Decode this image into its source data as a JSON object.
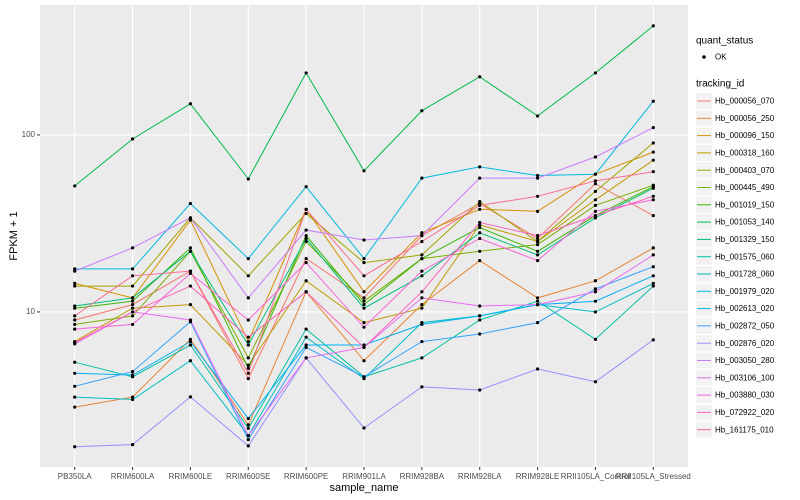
{
  "chart_data": {
    "type": "line",
    "x_label": "sample_name",
    "y_label": "FPKM + 1",
    "categories": [
      "PB350LA",
      "RRIM600LA",
      "RRIM600LE",
      "RRIM600SE",
      "RRIM600PE",
      "RRIM901LA",
      "RRIM928BA",
      "RRIM928LA",
      "RRIM928LE",
      "RRII105LA_Control",
      "RRII105LA_Stressed"
    ],
    "log_y": true,
    "grid": true,
    "ylim": [
      1.33,
      542
    ],
    "yticks": [
      10,
      100
    ],
    "point_legend_title": "quant_status",
    "point_legend_label": "OK",
    "point_color": "#000000",
    "legend_title": "tracking_id",
    "series": [
      {
        "name": "Hb_000056_070",
        "color": "#F8766D",
        "values": [
          9,
          11,
          17,
          4.2,
          20,
          12,
          27,
          41,
          26,
          53,
          35
        ]
      },
      {
        "name": "Hb_000056_250",
        "color": "#EA8331",
        "values": [
          2.9,
          3.3,
          7,
          2.3,
          13,
          5.3,
          11,
          19.5,
          12,
          15,
          23
        ]
      },
      {
        "name": "Hb_000096_150",
        "color": "#D89000",
        "values": [
          14.5,
          12,
          33,
          6.8,
          38,
          13,
          28,
          38,
          37,
          60,
          80
        ]
      },
      {
        "name": "Hb_000318_160",
        "color": "#C09B00",
        "values": [
          6.8,
          10.5,
          11,
          5,
          15,
          8.7,
          10.5,
          31,
          25,
          43,
          72
        ]
      },
      {
        "name": "Hb_000403_070",
        "color": "#A3A500",
        "values": [
          14,
          14,
          34,
          16,
          36,
          19,
          21,
          42,
          25,
          48,
          90
        ]
      },
      {
        "name": "Hb_000445_490",
        "color": "#7CAE00",
        "values": [
          8.5,
          9.5,
          22,
          5.5,
          25,
          11.5,
          20,
          22,
          24,
          40,
          52
        ]
      },
      {
        "name": "Hb_001019_150",
        "color": "#39B600",
        "values": [
          10.5,
          11.5,
          23,
          4.8,
          27,
          11,
          20,
          30,
          22,
          35,
          51
        ]
      },
      {
        "name": "Hb_001053_140",
        "color": "#00BB4E",
        "values": [
          51.5,
          94.8,
          150,
          56.4,
          224,
          62.7,
          137,
          213,
          128,
          224,
          413
        ]
      },
      {
        "name": "Hb_001329_150",
        "color": "#00BF7D",
        "values": [
          10.8,
          12,
          22,
          6.5,
          26,
          10.5,
          16,
          28,
          21,
          34,
          50
        ]
      },
      {
        "name": "Hb_001575_060",
        "color": "#00C1A3",
        "values": [
          5.2,
          4.3,
          6.5,
          2.2,
          8,
          4.3,
          5.5,
          9,
          11.5,
          7,
          14
        ]
      },
      {
        "name": "Hb_001728_060",
        "color": "#00BFC4",
        "values": [
          3.3,
          3.2,
          5.3,
          2.0,
          7.2,
          4.2,
          8.7,
          9.5,
          11,
          10,
          14.5
        ]
      },
      {
        "name": "Hb_001979_020",
        "color": "#00BAE0",
        "values": [
          17.5,
          17.5,
          41,
          20,
          51,
          20,
          57,
          66,
          59,
          60,
          155
        ]
      },
      {
        "name": "Hb_002613_020",
        "color": "#00B0F6",
        "values": [
          4.5,
          4.4,
          6.8,
          2.5,
          6.5,
          6.5,
          8.5,
          9.5,
          11,
          11.5,
          16
        ]
      },
      {
        "name": "Hb_002872_050",
        "color": "#35A2FF",
        "values": [
          3.8,
          4.6,
          8.8,
          1.9,
          6.3,
          4.3,
          6.8,
          7.5,
          8.7,
          13.5,
          18
        ]
      },
      {
        "name": "Hb_002876_020",
        "color": "#9590FF",
        "values": [
          1.73,
          1.78,
          3.31,
          1.75,
          5.5,
          2.21,
          3.77,
          3.62,
          4.76,
          4.03,
          6.95
        ]
      },
      {
        "name": "Hb_003050_280",
        "color": "#C77CFF",
        "values": [
          17,
          23,
          34,
          12,
          29,
          25.5,
          27,
          57,
          57,
          75,
          110
        ]
      },
      {
        "name": "Hb_003106_100",
        "color": "#E76BF3",
        "values": [
          6.6,
          10,
          9,
          2.0,
          5.5,
          6.3,
          12,
          10.8,
          11,
          13,
          21
        ]
      },
      {
        "name": "Hb_003880_030",
        "color": "#FA62DB",
        "values": [
          8,
          8.5,
          16.5,
          9,
          19,
          8.2,
          17,
          26,
          19.5,
          37,
          43
        ]
      },
      {
        "name": "Hb_072922_020",
        "color": "#FF62BC",
        "values": [
          6.7,
          10,
          14,
          7.2,
          13,
          6.3,
          13,
          32,
          27,
          35,
          45
        ]
      },
      {
        "name": "Hb_161175_010",
        "color": "#FF6C91",
        "values": [
          9.5,
          16,
          17,
          4.5,
          38,
          16,
          25,
          40,
          45,
          55,
          62
        ]
      }
    ]
  }
}
